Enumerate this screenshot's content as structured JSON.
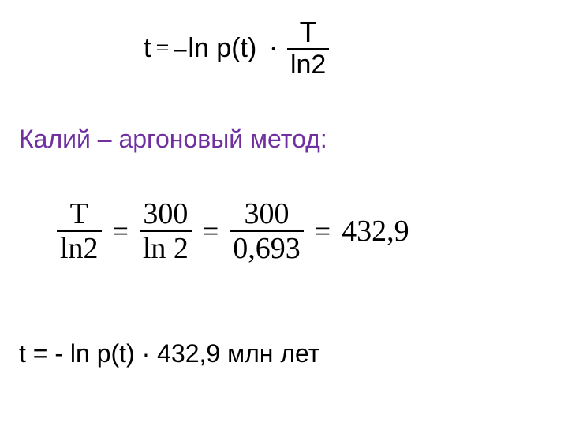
{
  "colors": {
    "background": "#ffffff",
    "text": "#000000",
    "heading": "#7030a0",
    "rule": "#000000"
  },
  "typography": {
    "body_font": "Arial",
    "math_font": "Times New Roman",
    "heading_size_pt": 24,
    "body_size_pt": 24,
    "formula_size_pt": 28
  },
  "formula1": {
    "lhs_var": "t",
    "equals": "=",
    "minus": "–",
    "ln_pt": "ln p(t)",
    "dot": "·",
    "frac": {
      "num": "T",
      "den": "ln2"
    }
  },
  "heading": {
    "text": "Калий  – аргоновый метод:"
  },
  "formula2": {
    "frac1": {
      "num": "T",
      "den": "ln2"
    },
    "eq1": "=",
    "frac2": {
      "num": "300",
      "den": "ln 2"
    },
    "eq2": "=",
    "frac3": {
      "num": "300",
      "den": "0,693"
    },
    "eq3": "=",
    "result": "432,9"
  },
  "final_line": {
    "text": "t = - ln p(t) · 432,9 млн лет"
  }
}
